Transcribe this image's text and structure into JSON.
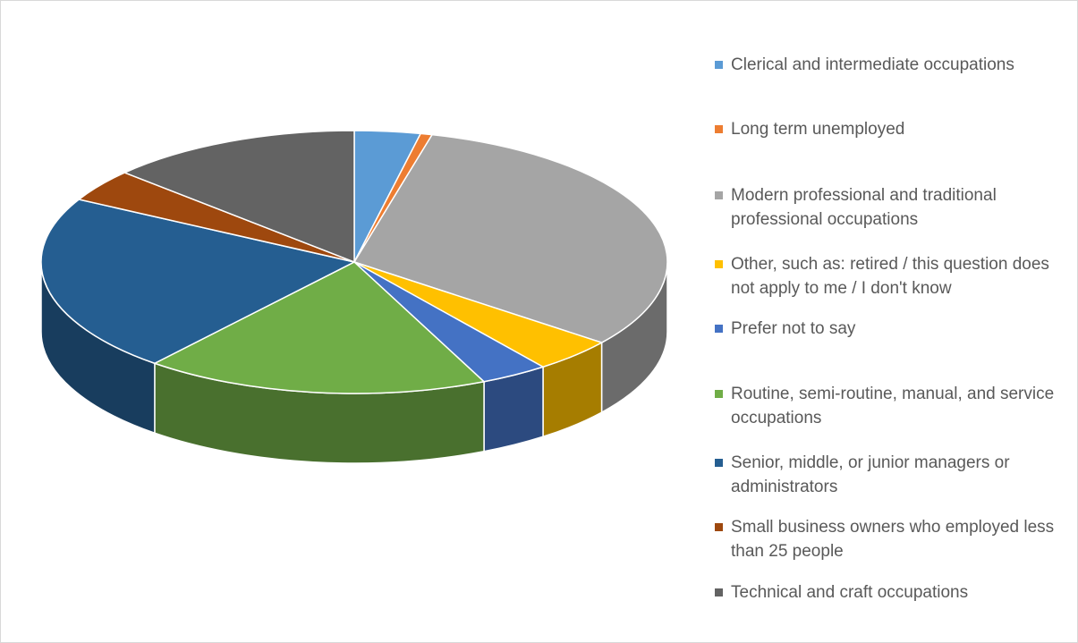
{
  "chart_data": {
    "type": "pie3d",
    "categories": [
      "Clerical and intermediate occupations",
      "Long term unemployed",
      "Modern professional and traditional professional occupations",
      "Other, such as: retired / this question does not apply to me / I don't know",
      "Prefer not to say",
      "Routine, semi-routine, manual, and service occupations",
      "Senior, middle, or junior managers or administrators",
      "Small business owners who employed less than 25 people",
      "Technical and craft occupations"
    ],
    "values": [
      3.4,
      0.6,
      31.5,
      4.2,
      3.5,
      17.8,
      21.9,
      4,
      13.1
    ],
    "colors": [
      "#5b9bd5",
      "#ed7d31",
      "#a5a5a5",
      "#ffc000",
      "#4472c4",
      "#70ad47",
      "#255e91",
      "#9e480e",
      "#636363"
    ],
    "legend": "right"
  }
}
